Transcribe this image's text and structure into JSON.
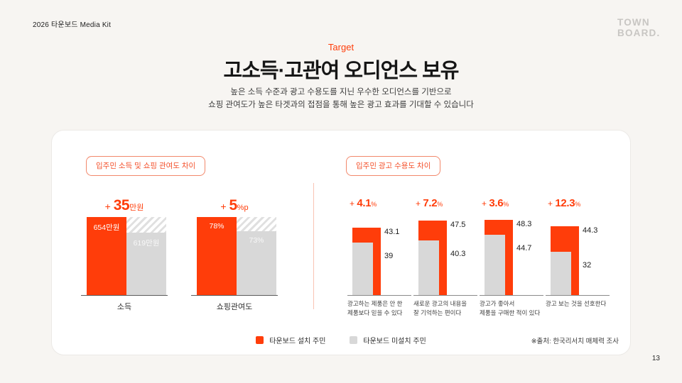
{
  "meta": {
    "page_number": "13"
  },
  "header": {
    "doc_title": "2026 타운보드 Media Kit",
    "logo_line1": "TOWN",
    "logo_line2": "BOARD."
  },
  "hero": {
    "eyebrow": "Target",
    "title": "고소득·고관여 오디언스 보유",
    "subtitle_line1": "높은 소득 수준과 광고 수용도를 지닌 우수한 오디언스를 기반으로",
    "subtitle_line2": "쇼핑 관여도가 높은 타겟과의 접점을 통해 높은 광고 효과를 기대할 수 있습니다"
  },
  "colors": {
    "accent": "#FF3D0A",
    "bar_gray": "#D8D8D8",
    "section_label_red": "#F4512C",
    "page_background": "#F7F5F2"
  },
  "legend": {
    "installed_label": "타운보드 설치 주민",
    "not_installed_label": "타운보드 미설치 주민"
  },
  "source_note": "※출처: 한국리서치 매체력 조사",
  "chart_data": [
    {
      "type": "bar",
      "title": "입주민 소득 및 쇼핑 관여도 차이",
      "legend": [
        "타운보드 설치 주민",
        "타운보드 미설치 주민"
      ],
      "groups": [
        {
          "category": "소득",
          "diff": {
            "prefix": "+",
            "value": "35",
            "unit": "만원"
          },
          "installed": {
            "value": 654,
            "label": "654만원"
          },
          "not_installed": {
            "value": 619,
            "label": "619만원"
          },
          "axis_min": 480
        },
        {
          "category": "쇼핑관여도",
          "diff": {
            "prefix": "+",
            "value": "5",
            "unit": "%p"
          },
          "installed": {
            "value": 78,
            "label": "78%"
          },
          "not_installed": {
            "value": 73,
            "label": "73%"
          },
          "axis_min": 50
        }
      ]
    },
    {
      "type": "bar",
      "title": "입주민 광고 수용도 차이",
      "unit": "%",
      "legend": [
        "타운보드 설치 주민",
        "타운보드 미설치 주민"
      ],
      "groups": [
        {
          "category_line1": "광고하는 제품은 안 한",
          "category_line2": "제품보다 믿을 수 있다",
          "diff": {
            "prefix": "+",
            "value": "4.1",
            "unit": "%"
          },
          "installed": 43.1,
          "not_installed": 39
        },
        {
          "category_line1": "새로운 광고의 내용을",
          "category_line2": "잘 기억하는 편이다",
          "diff": {
            "prefix": "+",
            "value": "7.2",
            "unit": "%"
          },
          "installed": 47.5,
          "not_installed": 40.3
        },
        {
          "category_line1": "광고가 좋아서",
          "category_line2": "제품을 구매한 적이 있다",
          "diff": {
            "prefix": "+",
            "value": "3.6",
            "unit": "%"
          },
          "installed": 48.3,
          "not_installed": 44.7
        },
        {
          "category_line1": "광고 보는 것을 선호한다",
          "category_line2": "",
          "diff": {
            "prefix": "+",
            "value": "12.3",
            "unit": "%"
          },
          "installed": 44.3,
          "not_installed": 32
        }
      ]
    }
  ]
}
